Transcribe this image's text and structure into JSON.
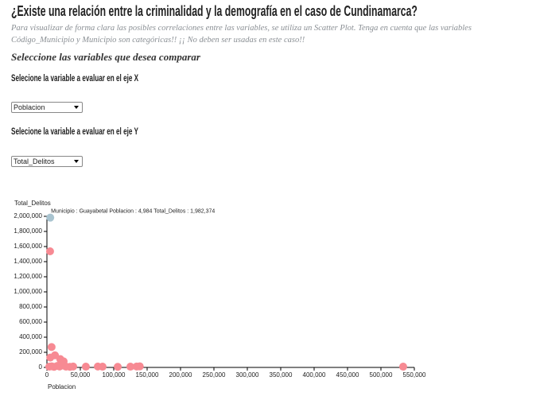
{
  "header": {
    "title": "¿Existe una relación entre la criminalidad y la demografía en el caso de Cundinamarca?",
    "subtitle": "Para visualizar de forma clara las posibles correlaciones entre las variables, se utiliza un Scatter Plot. Tenga en cuenta que las variables Código_Municipio y Municipio son categóricas!! ¡¡ No deben ser usadas en este caso!!",
    "section": "Seleccione las variables que desea comparar"
  },
  "controls": {
    "x_label": "Selecione la variable a evaluar en el eje X",
    "x_selected": "Poblacion",
    "y_label": "Selecione la variable a evaluar en el eje Y",
    "y_selected": "Total_Delitos"
  },
  "chart_data": {
    "type": "scatter",
    "x_label": "Poblacion",
    "y_label": "Total_Delitos",
    "color": "#f78a93",
    "x": [
      4984,
      4700,
      7000,
      12000,
      5000,
      20000,
      25000,
      3600,
      7100,
      10700,
      15500,
      19000,
      22600,
      28600,
      34500,
      39300,
      58300,
      76200,
      83300,
      106000,
      125000,
      134300,
      139000,
      533300
    ],
    "values": [
      1982374,
      1537000,
      270000,
      160000,
      130000,
      110000,
      80000,
      10000,
      15000,
      8000,
      20000,
      12000,
      25000,
      10000,
      8000,
      12000,
      10000,
      12000,
      10000,
      8000,
      10000,
      12000,
      14000,
      10000
    ],
    "tooltip": {
      "text": "Municipio : Guayabetal Poblacion : 4,984 Total_Delitos : 1,982,374",
      "point": 0,
      "color": "#a9c4d0"
    },
    "xlim": [
      0,
      550000
    ],
    "ylim": [
      0,
      2000000
    ],
    "xticks": [
      0,
      {
        "value": 50000,
        "label": "50,000"
      },
      {
        "value": 100000,
        "label": "100,000"
      },
      {
        "value": 150000,
        "label": "150,000"
      },
      {
        "value": 200000,
        "label": "200,000"
      },
      {
        "value": 250000,
        "label": "250,000"
      },
      {
        "value": 300000,
        "label": "300,000"
      },
      {
        "value": 350000,
        "label": "350,000"
      },
      {
        "value": 400000,
        "label": "400,000"
      },
      {
        "value": 450000,
        "label": "450,000"
      },
      {
        "value": 500000,
        "label": "500,000"
      },
      {
        "value": 550000,
        "label": "550,000"
      }
    ],
    "yticks": [
      0,
      {
        "value": 200000,
        "label": "200,000"
      },
      {
        "value": 400000,
        "label": "400,000"
      },
      {
        "value": 600000,
        "label": "600,000"
      },
      {
        "value": 800000,
        "label": "800,000"
      },
      {
        "value": 1000000,
        "label": "1,000,000"
      },
      {
        "value": 1200000,
        "label": "1,200,000"
      },
      {
        "value": 1400000,
        "label": "1,400,000"
      },
      {
        "value": 1600000,
        "label": "1,600,000"
      },
      {
        "value": 1800000,
        "label": "1,800,000"
      },
      {
        "value": 2000000,
        "label": "2,000,000"
      }
    ]
  }
}
